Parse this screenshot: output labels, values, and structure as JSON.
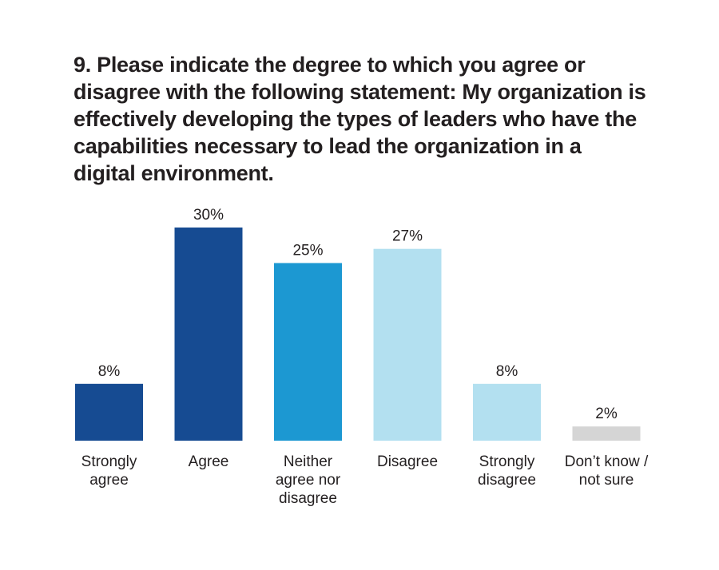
{
  "chart_data": {
    "type": "bar",
    "title": "9. Please indicate the degree to which you agree or disagree with the following statement: My organization is effectively developing the types of leaders who have the capabilities necessary to lead the organization in a digital environment.",
    "categories": [
      [
        "Strongly",
        "agree"
      ],
      [
        "Agree"
      ],
      [
        "Neither",
        "agree nor",
        "disagree"
      ],
      [
        "Disagree"
      ],
      [
        "Strongly",
        "disagree"
      ],
      [
        "Don’t know /",
        "not sure"
      ]
    ],
    "values": [
      8,
      30,
      25,
      27,
      8,
      2
    ],
    "value_labels": [
      "8%",
      "30%",
      "25%",
      "27%",
      "8%",
      "2%"
    ],
    "colors": [
      "#164b92",
      "#164b92",
      "#1c98d2",
      "#b3e0f0",
      "#b3e0f0",
      "#d5d5d5"
    ],
    "unit": "%",
    "grid": false,
    "legend": "none"
  }
}
